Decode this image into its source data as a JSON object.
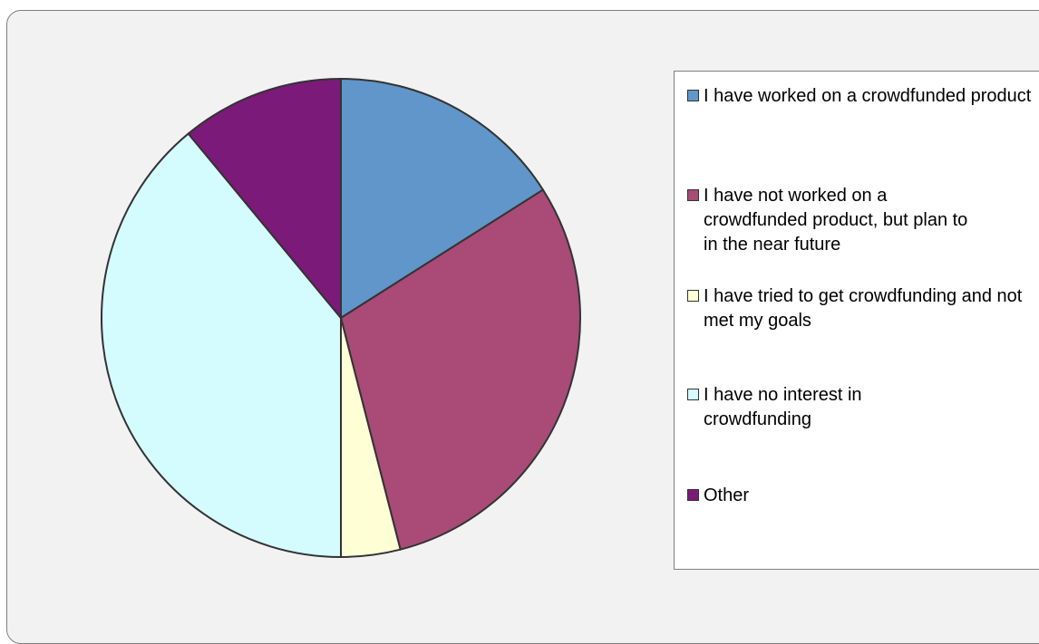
{
  "chart_data": {
    "type": "pie",
    "title": "",
    "categories": [
      "I have worked on a crowdfunded product",
      "I have not worked on a crowdfunded product, but plan to in the near future",
      "I have tried to get crowdfunding and not met my goals",
      "I have no interest in crowdfunding",
      "Other"
    ],
    "values": [
      16,
      30,
      4,
      39,
      11
    ],
    "colors": [
      "#6096c9",
      "#a94a77",
      "#ffffd6",
      "#d4fbfe",
      "#7b1a79"
    ],
    "legend_position": "right",
    "start_angle_deg": 0,
    "direction": "clockwise"
  },
  "legend": {
    "items": [
      "I have worked on a crowdfunded product",
      "I have not worked on a crowdfunded product, but plan to in the near future",
      "I have tried to get crowdfunding and not met my goals",
      "I have no interest in crowdfunding",
      "Other"
    ]
  }
}
